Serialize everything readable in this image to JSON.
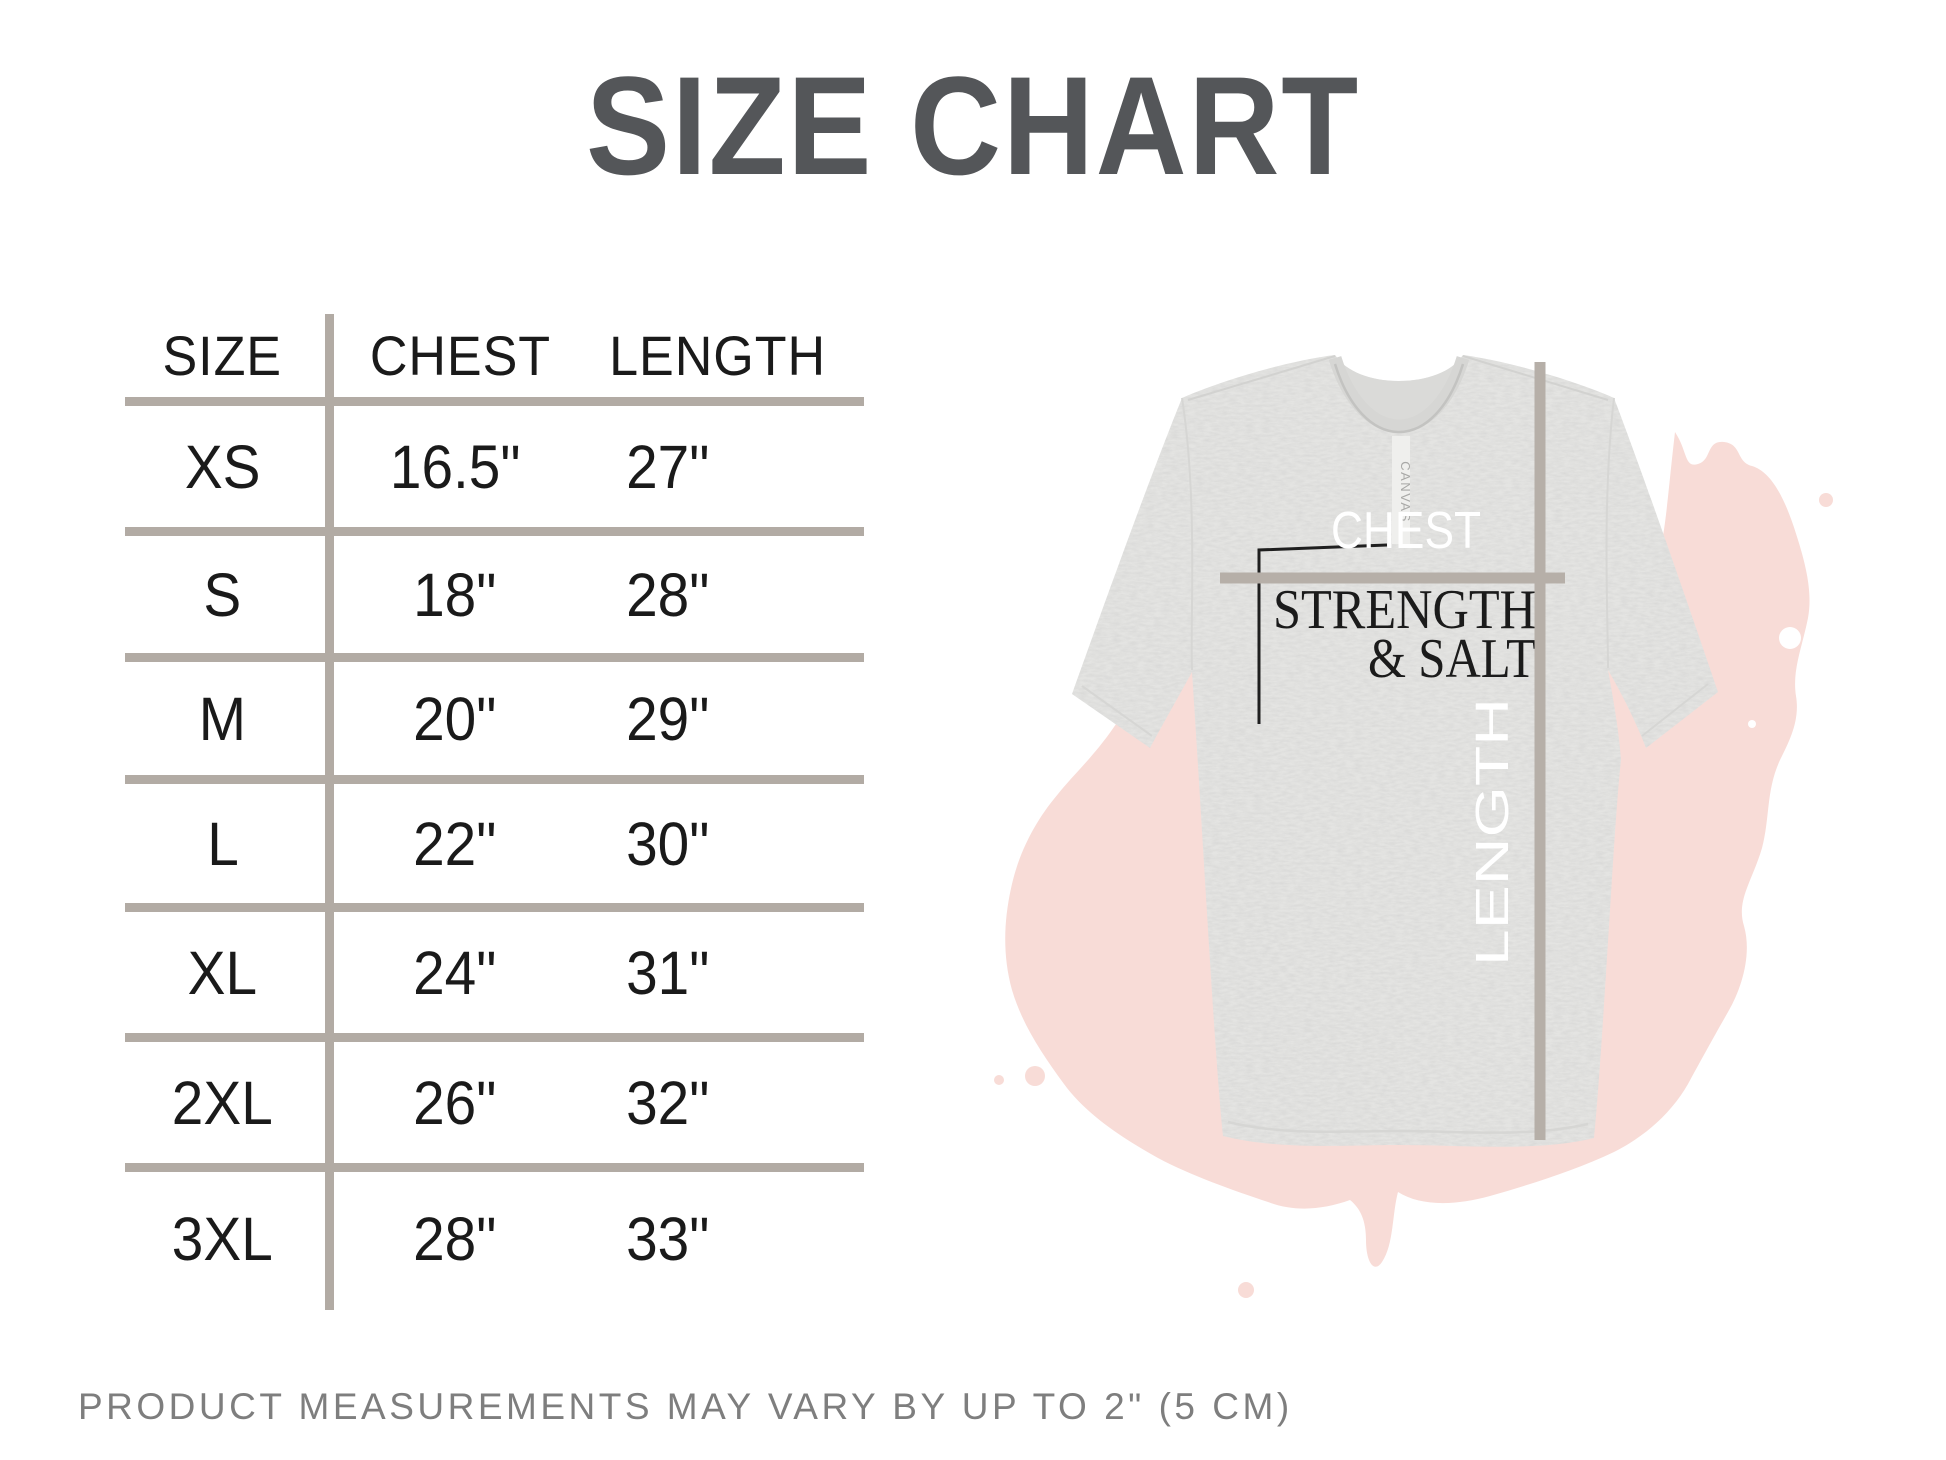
{
  "title": "SIZE CHART",
  "table": {
    "headers": [
      "SIZE",
      "CHEST",
      "LENGTH"
    ],
    "rows": [
      {
        "size": "XS",
        "chest": "16.5\"",
        "length": "27\""
      },
      {
        "size": "S",
        "chest": "18\"",
        "length": "28\""
      },
      {
        "size": "M",
        "chest": "20\"",
        "length": "29\""
      },
      {
        "size": "L",
        "chest": "22\"",
        "length": "30\""
      },
      {
        "size": "XL",
        "chest": "24\"",
        "length": "31\""
      },
      {
        "size": "2XL",
        "chest": "26\"",
        "length": "32\""
      },
      {
        "size": "3XL",
        "chest": "28\"",
        "length": "33\""
      }
    ]
  },
  "tshirt": {
    "chest_label": "CHEST",
    "length_label": "LENGTH",
    "print_line1": "STRENGTH",
    "print_line2": "& SALT",
    "neck_label": "CANVAS"
  },
  "disclaimer": "PRODUCT MEASUREMENTS MAY VARY BY UP TO 2\" (5 CM)",
  "colors": {
    "title_gray": "#545659",
    "table_rule_taupe": "#b2aba4",
    "text_black": "#1a1a1a",
    "measure_line_taupe": "#b6afa8",
    "blob_pink": "#f8dcd7",
    "shirt_gray": "#e4e4e2",
    "disclaimer_gray": "#7e7e7e",
    "print_black": "#1b1b1b",
    "print_white": "#ffffff"
  },
  "chart_data": {
    "type": "table",
    "title": "SIZE CHART",
    "columns": [
      "SIZE",
      "CHEST",
      "LENGTH"
    ],
    "rows": [
      [
        "XS",
        "16.5\"",
        "27\""
      ],
      [
        "S",
        "18\"",
        "28\""
      ],
      [
        "M",
        "20\"",
        "29\""
      ],
      [
        "L",
        "22\"",
        "30\""
      ],
      [
        "XL",
        "24\"",
        "31\""
      ],
      [
        "2XL",
        "26\"",
        "32\""
      ],
      [
        "3XL",
        "28\"",
        "33\""
      ]
    ],
    "footnote": "PRODUCT MEASUREMENTS MAY VARY BY UP TO 2\" (5 CM)"
  }
}
